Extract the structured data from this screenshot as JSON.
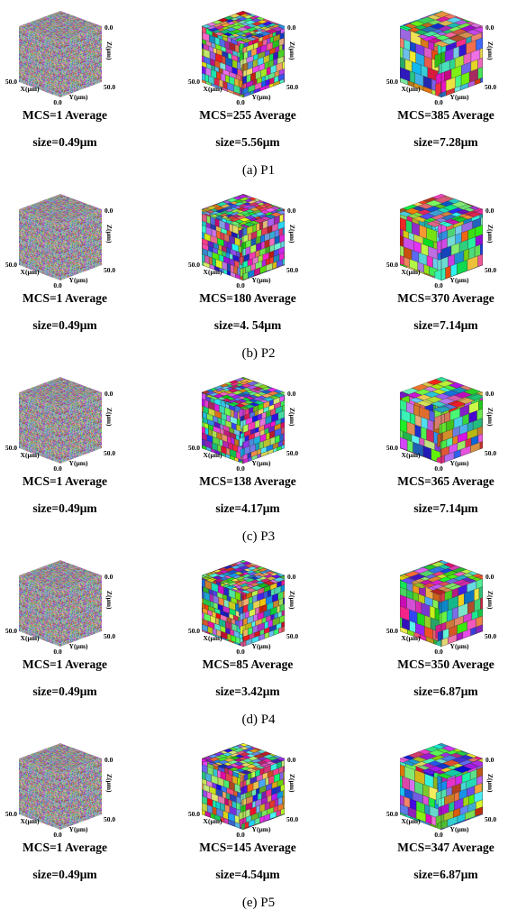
{
  "panels": [
    {
      "label": "(a) P1",
      "cells": [
        {
          "caption": [
            "MCS=1 Average",
            "size=0.49μm"
          ],
          "axis_labels": [
            "0.0",
            "Z(μm)",
            "50.0",
            "50.0",
            "X(μm)",
            "0.0",
            "Y(μm)"
          ]
        },
        {
          "caption": [
            "MCS=255 Average",
            "size=5.56μm"
          ],
          "axis_labels": [
            "0.0",
            "Z(μm)",
            "50.0",
            "50.0",
            "X(μm)",
            "0.0",
            "Y(μm)"
          ]
        },
        {
          "caption": [
            "MCS=385 Average",
            "size=7.28μm"
          ],
          "axis_labels": [
            "0.0",
            "Z(μm)",
            "50.0",
            "50.0",
            "X(μm)",
            "0.0",
            "Y(μm)"
          ]
        }
      ]
    },
    {
      "label": "(b) P2",
      "cells": [
        {
          "caption": [
            "MCS=1 Average",
            "size=0.49μm"
          ],
          "axis_labels": [
            "0.0",
            "Z(μm)",
            "50.0",
            "50.0",
            "X(μm)",
            "0.0",
            "Y(μm)"
          ]
        },
        {
          "caption": [
            "MCS=180 Average",
            "size=4. 54μm"
          ],
          "axis_labels": [
            "0.0",
            "Z(μm)",
            "50.0",
            "50.0",
            "X(μm)",
            "0.0",
            "Y(μm)"
          ]
        },
        {
          "caption": [
            "MCS=370 Average",
            "size=7.14μm"
          ],
          "axis_labels": [
            "0.0",
            "Z(μm)",
            "50.0",
            "50.0",
            "X(μm)",
            "0.0",
            "Y(μm)"
          ]
        }
      ]
    },
    {
      "label": "(c) P3",
      "cells": [
        {
          "caption": [
            "MCS=1 Average",
            "size=0.49μm"
          ],
          "axis_labels": [
            "0.0",
            "Z(μm)",
            "50.0",
            "50.0",
            "X(μm)",
            "0.0",
            "Y(μm)"
          ]
        },
        {
          "caption": [
            "MCS=138 Average",
            "size=4.17μm"
          ],
          "axis_labels": [
            "0.0",
            "Z(μm)",
            "50.0",
            "50.0",
            "X(μm)",
            "0.0",
            "Y(μm)"
          ]
        },
        {
          "caption": [
            "MCS=365 Average",
            "size=7.14μm"
          ],
          "axis_labels": [
            "0.0",
            "Z(μm)",
            "50.0",
            "50.0",
            "X(μm)",
            "0.0",
            "Y(μm)"
          ]
        }
      ]
    },
    {
      "label": "(d) P4",
      "cells": [
        {
          "caption": [
            "MCS=1 Average",
            "size=0.49μm"
          ],
          "axis_labels": [
            "0.0",
            "Z(μm)",
            "50.0",
            "50.0",
            "X(μm)",
            "0.0",
            "Y(μm)"
          ]
        },
        {
          "caption": [
            "MCS=85 Average",
            "size=3.42μm"
          ],
          "axis_labels": [
            "0.0",
            "Z(μm)",
            "50.0",
            "50.0",
            "X(μm)",
            "0.0",
            "Y(μm)"
          ]
        },
        {
          "caption": [
            "MCS=350 Average",
            "size=6.87μm"
          ],
          "axis_labels": [
            "0.0",
            "Z(μm)",
            "50.0",
            "50.0",
            "X(μm)",
            "0.0",
            "Y(μm)"
          ]
        }
      ]
    },
    {
      "label": "(e) P5",
      "cells": [
        {
          "caption": [
            "MCS=1 Average",
            "size=0.49μm"
          ],
          "axis_labels": [
            "0.0",
            "Z(μm)",
            "50.0",
            "50.0",
            "X(μm)",
            "0.0",
            "Y(μm)"
          ]
        },
        {
          "caption": [
            "MCS=145 Average",
            "size=4.54μm"
          ],
          "axis_labels": [
            "0.0",
            "Z(μm)",
            "50.0",
            "50.0",
            "X(μm)",
            "0.0",
            "Y(μm)"
          ]
        },
        {
          "caption": [
            "MCS=347 Average",
            "size=6.87μm"
          ],
          "axis_labels": [
            "0.0",
            "Z(μm)",
            "50.0",
            "50.0",
            "X(μm)",
            "0.0",
            "Y(μm)"
          ]
        }
      ]
    }
  ]
}
